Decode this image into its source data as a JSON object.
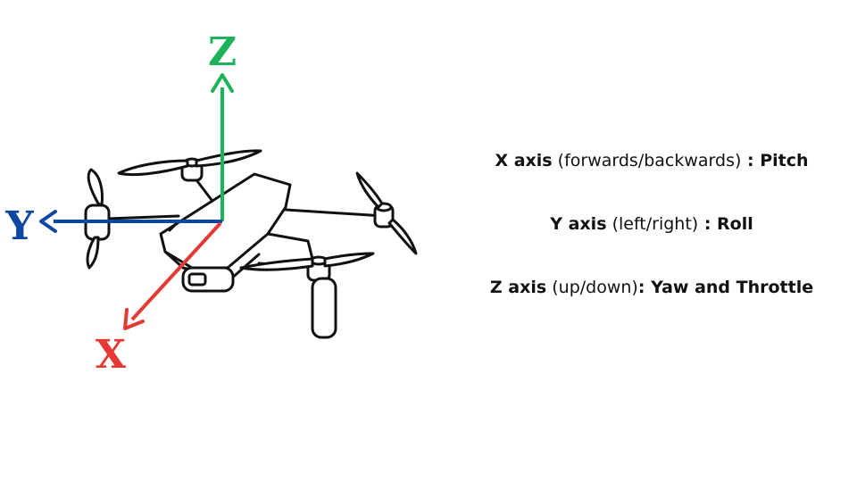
{
  "axes": {
    "z": {
      "letter": "Z",
      "color": "#1db35a"
    },
    "y": {
      "letter": "Y",
      "color": "#0d47a1"
    },
    "x": {
      "letter": "X",
      "color": "#e53935"
    }
  },
  "legend": [
    {
      "axis": "X axis",
      "desc": "(forwards/backwards)",
      "sep": " : ",
      "motion": "Pitch"
    },
    {
      "axis": "Y axis",
      "desc": "(left/right)",
      "sep": " : ",
      "motion": "Roll"
    },
    {
      "axis": "Z axis",
      "desc": "(up/down)",
      "sep": ": ",
      "motion": "Yaw and Throttle"
    }
  ],
  "drone_icon": "quadcopter-drone-outline"
}
